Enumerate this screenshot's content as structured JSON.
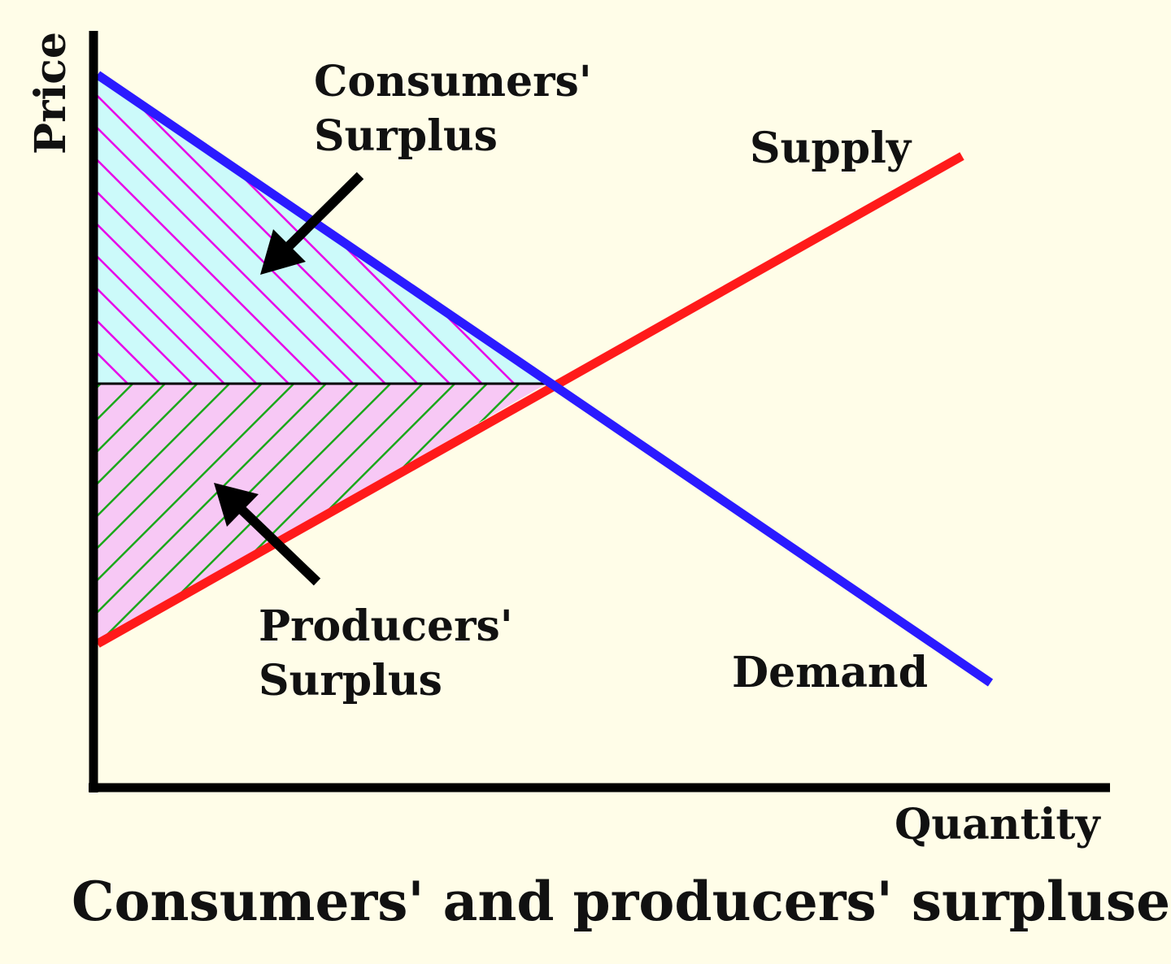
{
  "diagram": {
    "title": "Consumers' and producers' surpluses",
    "axes": {
      "y_label": "Price",
      "x_label": "Quantity"
    },
    "curves": [
      {
        "name": "Supply",
        "color": "#ff1a1a"
      },
      {
        "name": "Demand",
        "color": "#2a1aff"
      }
    ],
    "regions": [
      {
        "name": "Consumers' Surplus",
        "label_lines": [
          "Consumers'",
          "Surplus"
        ],
        "fill": "#ccfafa",
        "hatch": "#e800e8"
      },
      {
        "name": "Producers' Surplus",
        "label_lines": [
          "Producers'",
          "Surplus"
        ],
        "fill": "#f7c8f5",
        "hatch": "#1aa81a"
      }
    ],
    "price_line_color": "#000000",
    "background": "#fffde8"
  }
}
